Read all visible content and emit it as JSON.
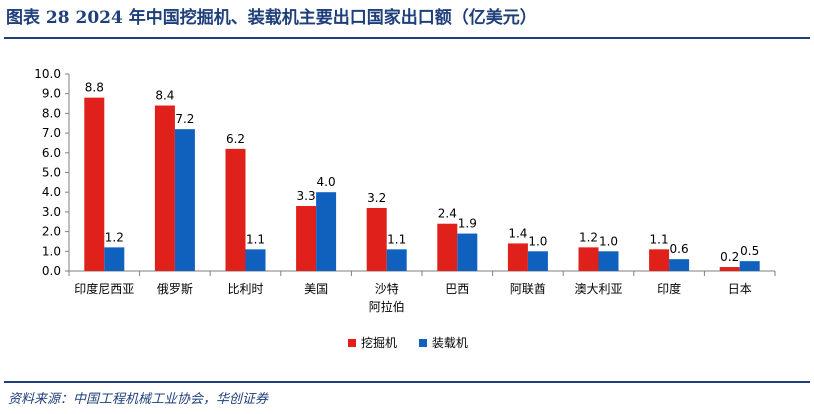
{
  "header": {
    "title": "图表 28   2024 年中国挖掘机、装载机主要出口国家出口额（亿美元）"
  },
  "footer": {
    "source": "资料来源：中国工程机械工业协会，华创证券"
  },
  "colors": {
    "excavator": "#e0201b",
    "loader": "#1061bd",
    "accent": "#1f3f7a"
  },
  "legend": {
    "excavator_label": "挖掘机",
    "loader_label": "装载机",
    "placement": "bottom-center"
  },
  "chart_data": {
    "type": "bar",
    "title": "图表 28   2024 年中国挖掘机、装载机主要出口国家出口额（亿美元）",
    "xlabel": "",
    "ylabel": "",
    "ylim": [
      0,
      10
    ],
    "yticks": [
      "0.0",
      "1.0",
      "2.0",
      "3.0",
      "4.0",
      "5.0",
      "6.0",
      "7.0",
      "8.0",
      "9.0",
      "10.0"
    ],
    "grid": false,
    "categories": [
      [
        "印度尼西亚"
      ],
      [
        "俄罗斯"
      ],
      [
        "比利时"
      ],
      [
        "美国"
      ],
      [
        "沙特",
        "阿拉伯"
      ],
      [
        "巴西"
      ],
      [
        "阿联酋"
      ],
      [
        "澳大利亚"
      ],
      [
        "印度"
      ],
      [
        "日本"
      ]
    ],
    "series": [
      {
        "name": "挖掘机",
        "values": [
          8.8,
          8.4,
          6.2,
          3.3,
          3.2,
          2.4,
          1.4,
          1.2,
          1.1,
          0.2
        ]
      },
      {
        "name": "装载机",
        "values": [
          1.2,
          7.2,
          1.1,
          4.0,
          1.1,
          1.9,
          1.0,
          1.0,
          0.6,
          0.5
        ]
      }
    ],
    "data_labels": [
      [
        "8.8",
        "8.4",
        "6.2",
        "3.3",
        "3.2",
        "2.4",
        "1.4",
        "1.2",
        "1.1",
        "0.2"
      ],
      [
        "1.2",
        "7.2",
        "1.1",
        "4.0",
        "1.1",
        "1.9",
        "1.0",
        "1.0",
        "0.6",
        "0.5"
      ]
    ]
  }
}
